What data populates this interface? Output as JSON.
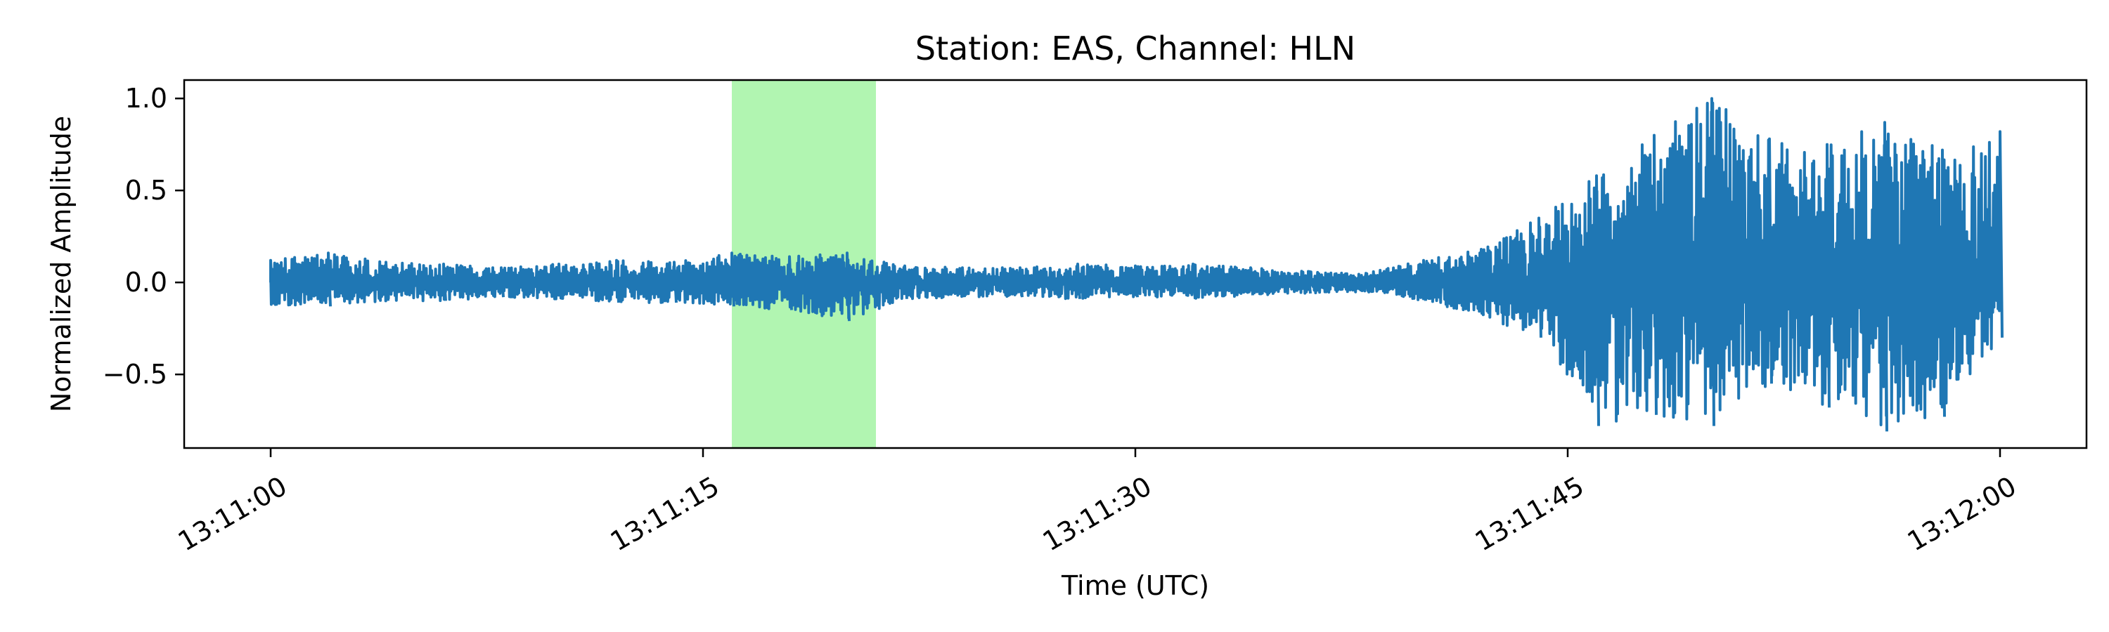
{
  "chart_data": {
    "type": "line",
    "title": "Station: EAS, Channel: HLN",
    "xlabel": "Time (UTC)",
    "ylabel": "Normalized Amplitude",
    "x_ticks": [
      "13:11:00",
      "13:11:15",
      "13:11:30",
      "13:11:45",
      "13:12:00"
    ],
    "x_range": [
      "13:10:57",
      "13:12:03"
    ],
    "y_ticks": [
      "1.0",
      "0.5",
      "0.0",
      "−0.5"
    ],
    "y_tick_values": [
      1.0,
      0.5,
      0.0,
      -0.5
    ],
    "ylim": [
      -0.9,
      1.1
    ],
    "grid": false,
    "series": [
      {
        "color": "#1f77b4",
        "envelope": [
          {
            "t": "13:11:00",
            "max": 0.12,
            "min": -0.12
          },
          {
            "t": "13:11:02",
            "max": 0.16,
            "min": -0.13
          },
          {
            "t": "13:11:04",
            "max": 0.11,
            "min": -0.1
          },
          {
            "t": "13:11:06",
            "max": 0.1,
            "min": -0.1
          },
          {
            "t": "13:11:08",
            "max": 0.08,
            "min": -0.08
          },
          {
            "t": "13:11:10",
            "max": 0.1,
            "min": -0.09
          },
          {
            "t": "13:11:12",
            "max": 0.12,
            "min": -0.11
          },
          {
            "t": "13:11:14",
            "max": 0.11,
            "min": -0.11
          },
          {
            "t": "13:11:16",
            "max": 0.16,
            "min": -0.13
          },
          {
            "t": "13:11:18",
            "max": 0.14,
            "min": -0.15
          },
          {
            "t": "13:11:20",
            "max": 0.16,
            "min": -0.21
          },
          {
            "t": "13:11:22",
            "max": 0.09,
            "min": -0.09
          },
          {
            "t": "13:11:24",
            "max": 0.08,
            "min": -0.08
          },
          {
            "t": "13:11:26",
            "max": 0.08,
            "min": -0.08
          },
          {
            "t": "13:11:28",
            "max": 0.1,
            "min": -0.09
          },
          {
            "t": "13:11:30",
            "max": 0.09,
            "min": -0.08
          },
          {
            "t": "13:11:32",
            "max": 0.1,
            "min": -0.09
          },
          {
            "t": "13:11:34",
            "max": 0.08,
            "min": -0.07
          },
          {
            "t": "13:11:36",
            "max": 0.06,
            "min": -0.06
          },
          {
            "t": "13:11:38",
            "max": 0.05,
            "min": -0.05
          },
          {
            "t": "13:11:40",
            "max": 0.12,
            "min": -0.1
          },
          {
            "t": "13:11:42",
            "max": 0.18,
            "min": -0.18
          },
          {
            "t": "13:11:44",
            "max": 0.35,
            "min": -0.3
          },
          {
            "t": "13:11:46",
            "max": 0.58,
            "min": -0.78
          },
          {
            "t": "13:11:48",
            "max": 0.8,
            "min": -0.72
          },
          {
            "t": "13:11:50",
            "max": 1.0,
            "min": -0.78
          },
          {
            "t": "13:11:52",
            "max": 0.78,
            "min": -0.55
          },
          {
            "t": "13:11:54",
            "max": 0.75,
            "min": -0.68
          },
          {
            "t": "13:11:56",
            "max": 0.87,
            "min": -0.81
          },
          {
            "t": "13:11:58",
            "max": 0.72,
            "min": -0.73
          },
          {
            "t": "13:12:00",
            "max": 0.82,
            "min": -0.3
          }
        ]
      }
    ],
    "highlight": {
      "start": "13:11:16",
      "end": "13:11:21",
      "color": "#b1f5b1"
    }
  }
}
